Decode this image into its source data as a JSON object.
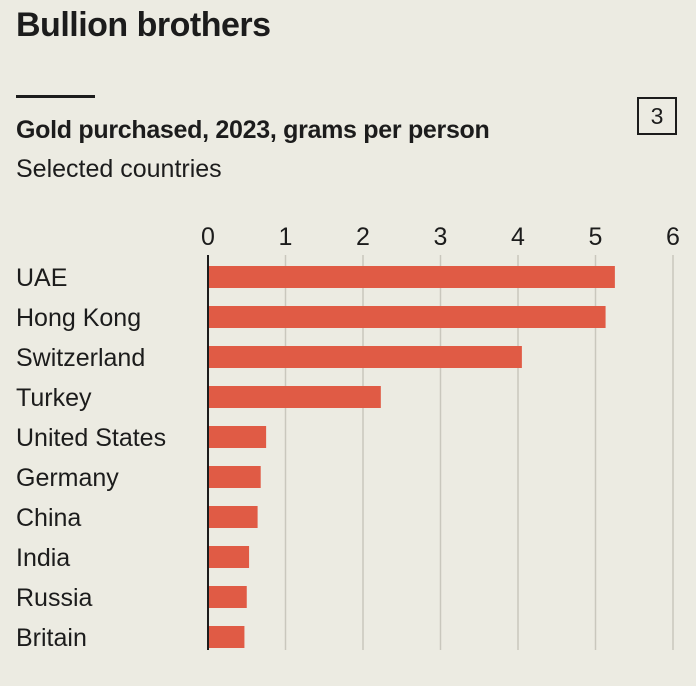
{
  "header": {
    "headline": "Bullion brothers",
    "chart_number": "3"
  },
  "colors": {
    "background": "#ecebe2",
    "bar": "#e05b45",
    "grid": "#c9c7bd",
    "text": "#1c1c1c"
  },
  "chart_data": {
    "type": "bar",
    "orientation": "horizontal",
    "title": "Gold purchased, 2023, grams per person",
    "subtitle": "Selected countries",
    "categories": [
      "UAE",
      "Hong Kong",
      "Switzerland",
      "Turkey",
      "United States",
      "Germany",
      "China",
      "India",
      "Russia",
      "Britain"
    ],
    "values": [
      5.25,
      5.13,
      4.05,
      2.23,
      0.75,
      0.68,
      0.64,
      0.53,
      0.5,
      0.47
    ],
    "xlim": [
      0,
      6
    ],
    "xticks": [
      0,
      1,
      2,
      3,
      4,
      5,
      6
    ],
    "grid": true,
    "tick_position": "top"
  }
}
